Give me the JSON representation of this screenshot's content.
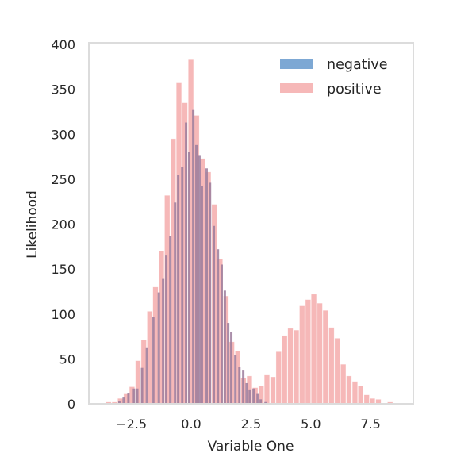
{
  "chart_data": {
    "type": "bar",
    "subtype": "overlaid-histogram",
    "title": "",
    "xlabel": "Variable One",
    "ylabel": "Likelihood",
    "xlim": [
      -4.2,
      9.2
    ],
    "ylim": [
      0,
      400
    ],
    "xticks": [
      -2.5,
      0.0,
      2.5,
      5.0,
      7.5
    ],
    "xtick_labels": [
      "−2.5",
      "0.0",
      "2.5",
      "5.0",
      "7.5"
    ],
    "yticks": [
      0,
      50,
      100,
      150,
      200,
      250,
      300,
      350,
      400
    ],
    "ytick_labels": [
      "0",
      "50",
      "100",
      "150",
      "200",
      "250",
      "300",
      "350",
      "400"
    ],
    "grid": false,
    "legend_position": "upper right",
    "series": [
      {
        "name": "negative",
        "color": "#6699cc",
        "opacity": 0.8,
        "bin_width": 0.125,
        "bins": [
          [
            -2.99,
            3
          ],
          [
            -2.81,
            7
          ],
          [
            -2.61,
            12
          ],
          [
            -2.38,
            17
          ],
          [
            -2.24,
            17
          ],
          [
            -2.04,
            40
          ],
          [
            -1.84,
            62
          ],
          [
            -1.57,
            97
          ],
          [
            -1.34,
            124
          ],
          [
            -1.16,
            139
          ],
          [
            -1.03,
            165
          ],
          [
            -0.86,
            187
          ],
          [
            -0.66,
            224
          ],
          [
            -0.53,
            255
          ],
          [
            -0.36,
            264
          ],
          [
            -0.2,
            313
          ],
          [
            -0.07,
            280
          ],
          [
            0.1,
            327
          ],
          [
            0.23,
            288
          ],
          [
            0.36,
            276
          ],
          [
            0.46,
            242
          ],
          [
            0.66,
            262
          ],
          [
            0.8,
            246
          ],
          [
            0.96,
            198
          ],
          [
            1.13,
            172
          ],
          [
            1.29,
            155
          ],
          [
            1.42,
            126
          ],
          [
            1.56,
            90
          ],
          [
            1.69,
            80
          ],
          [
            1.86,
            54
          ],
          [
            2.03,
            41
          ],
          [
            2.19,
            37
          ],
          [
            2.33,
            23
          ],
          [
            2.46,
            16
          ],
          [
            2.62,
            17
          ],
          [
            2.79,
            11
          ],
          [
            2.92,
            5
          ],
          [
            3.12,
            2
          ]
        ]
      },
      {
        "name": "positive",
        "color": "#f4a6a6",
        "opacity": 0.8,
        "bin_width": 0.245,
        "bins": [
          [
            -3.44,
            2
          ],
          [
            -3.19,
            2
          ],
          [
            -2.95,
            6
          ],
          [
            -2.7,
            11
          ],
          [
            -2.46,
            19
          ],
          [
            -2.21,
            48
          ],
          [
            -1.97,
            71
          ],
          [
            -1.72,
            103
          ],
          [
            -1.48,
            130
          ],
          [
            -1.23,
            170
          ],
          [
            -0.99,
            232
          ],
          [
            -0.74,
            295
          ],
          [
            -0.5,
            358
          ],
          [
            -0.25,
            335
          ],
          [
            0.0,
            383
          ],
          [
            0.24,
            321
          ],
          [
            0.49,
            273
          ],
          [
            0.73,
            258
          ],
          [
            0.98,
            222
          ],
          [
            1.22,
            161
          ],
          [
            1.47,
            120
          ],
          [
            1.71,
            69
          ],
          [
            1.96,
            59
          ],
          [
            2.2,
            29
          ],
          [
            2.45,
            31
          ],
          [
            2.69,
            18
          ],
          [
            2.94,
            20
          ],
          [
            3.18,
            32
          ],
          [
            3.43,
            30
          ],
          [
            3.67,
            58
          ],
          [
            3.92,
            76
          ],
          [
            4.16,
            84
          ],
          [
            4.41,
            82
          ],
          [
            4.65,
            109
          ],
          [
            4.9,
            116
          ],
          [
            5.14,
            122
          ],
          [
            5.39,
            112
          ],
          [
            5.63,
            104
          ],
          [
            5.88,
            85
          ],
          [
            6.12,
            73
          ],
          [
            6.37,
            44
          ],
          [
            6.61,
            31
          ],
          [
            6.86,
            25
          ],
          [
            7.1,
            20
          ],
          [
            7.35,
            10
          ],
          [
            7.59,
            6
          ],
          [
            7.84,
            5
          ],
          [
            8.33,
            2
          ]
        ]
      }
    ]
  },
  "legend": {
    "items": [
      {
        "label": "negative",
        "color": "#6699cc"
      },
      {
        "label": "positive",
        "color": "#f4a6a6"
      }
    ]
  },
  "colors": {
    "frame": "#dcdcdc",
    "text": "#262626",
    "overlap": "#9b7b9b"
  }
}
